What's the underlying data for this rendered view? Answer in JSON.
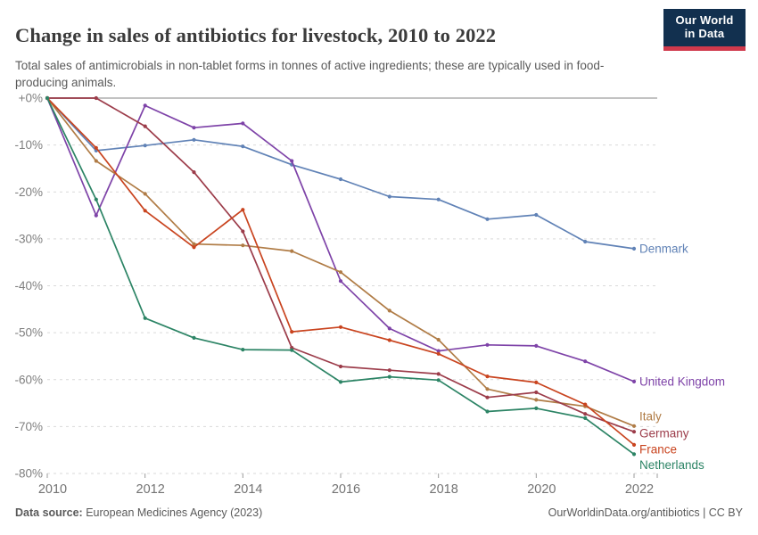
{
  "header": {
    "title": "Change in sales of antibiotics for livestock, 2010 to 2022",
    "subtitle": "Total sales of antimicrobials in non-tablet forms in tonnes of active ingredients; these are typically used in food-producing animals.",
    "logo": {
      "line1": "Our World",
      "line2": "in Data"
    }
  },
  "footer": {
    "source_label": "Data source:",
    "source_value": " European Medicines Agency (2023)",
    "right": "OurWorldinData.org/antibiotics | CC BY"
  },
  "chart_data": {
    "type": "line",
    "title": "Change in sales of antibiotics for livestock, 2010 to 2022",
    "xlabel": "",
    "ylabel": "",
    "unit": "%",
    "x": [
      2010,
      2011,
      2012,
      2013,
      2014,
      2015,
      2016,
      2017,
      2018,
      2019,
      2020,
      2021,
      2022
    ],
    "x_ticks": [
      2010,
      2012,
      2014,
      2016,
      2018,
      2020,
      2022
    ],
    "ylim": [
      -80,
      0
    ],
    "y_ticks": [
      0,
      -10,
      -20,
      -30,
      -40,
      -50,
      -60,
      -70,
      -80
    ],
    "y_tick_labels": [
      "+0%",
      "-10%",
      "-20%",
      "-30%",
      "-40%",
      "-50%",
      "-60%",
      "-70%",
      "-80%"
    ],
    "grid": "horizontal-dashed",
    "legend_position": "right-of-line-end",
    "axis_color": "#9b9b9b",
    "grid_color": "#d9d9d9",
    "zero_line_color": "#c2c2c2",
    "tick_text_color": "#7f7f7f",
    "series": [
      {
        "name": "Denmark",
        "color": "#6082B6",
        "label_nudge": 0,
        "values": [
          0,
          -11.2,
          -10.1,
          -8.9,
          -10.3,
          -14.2,
          -17.3,
          -21.0,
          -21.6,
          -25.8,
          -24.9,
          -30.6,
          -32.1
        ]
      },
      {
        "name": "United Kingdom",
        "color": "#7E43A8",
        "label_nudge": 0,
        "values": [
          0,
          -25.0,
          -1.6,
          -6.3,
          -5.4,
          -13.4,
          -39.0,
          -49.1,
          -53.9,
          -52.6,
          -52.8,
          -56.1,
          -60.4
        ]
      },
      {
        "name": "Italy",
        "color": "#B07C46",
        "label_nudge": -11,
        "values": [
          0,
          -13.4,
          -20.4,
          -31.1,
          -31.4,
          -32.6,
          -37.1,
          -45.3,
          -51.5,
          -62.0,
          -64.3,
          -65.7,
          -69.9
        ]
      },
      {
        "name": "Germany",
        "color": "#9C3C4A",
        "label_nudge": 2,
        "values": [
          0,
          0,
          -6.0,
          -15.8,
          -28.4,
          -53.2,
          -57.2,
          -58.0,
          -58.8,
          -63.8,
          -62.7,
          -67.3,
          -71.1
        ]
      },
      {
        "name": "France",
        "color": "#C9441F",
        "label_nudge": 5,
        "values": [
          0,
          -10.6,
          -24.0,
          -31.8,
          -23.8,
          -49.8,
          -48.8,
          -51.6,
          -54.5,
          -59.3,
          -60.6,
          -65.3,
          -73.9
        ]
      },
      {
        "name": "Netherlands",
        "color": "#2C8465",
        "label_nudge": 12,
        "values": [
          0,
          -21.6,
          -46.9,
          -51.1,
          -53.6,
          -53.7,
          -60.5,
          -59.4,
          -60.1,
          -66.8,
          -66.1,
          -68.2,
          -75.9
        ]
      }
    ]
  }
}
